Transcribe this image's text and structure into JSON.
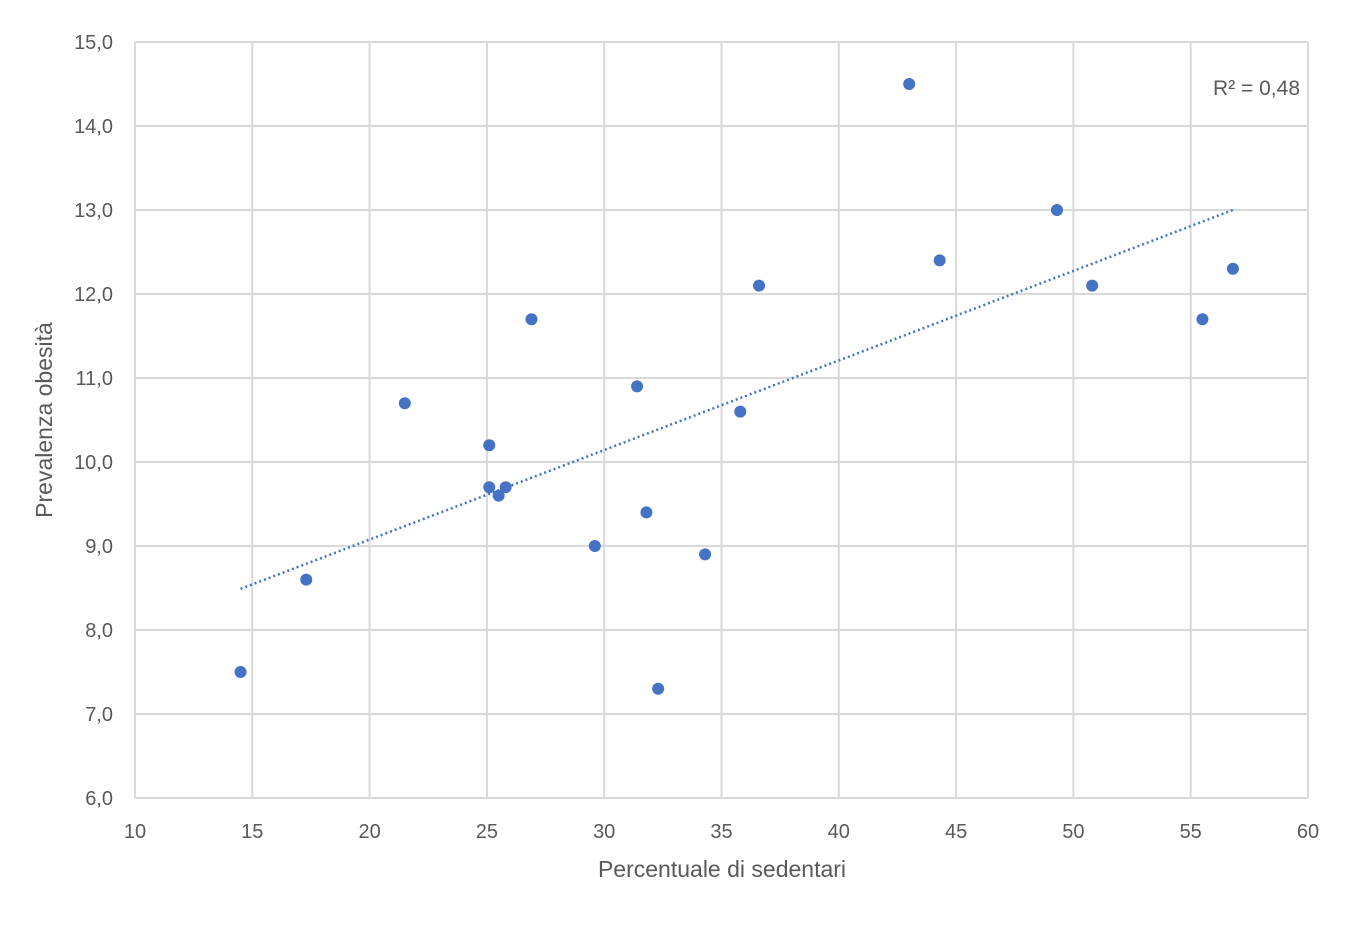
{
  "chart_data": {
    "type": "scatter",
    "xlabel": "Percentuale di sedentari",
    "ylabel": "Prevalenza obesità",
    "xlim": [
      10,
      60
    ],
    "ylim": [
      6,
      15
    ],
    "x_ticks": [
      10,
      15,
      20,
      25,
      30,
      35,
      40,
      45,
      50,
      55,
      60
    ],
    "y_ticks": [
      6,
      7,
      8,
      9,
      10,
      11,
      12,
      13,
      14,
      15
    ],
    "x_tick_labels": [
      "10",
      "15",
      "20",
      "25",
      "30",
      "35",
      "40",
      "45",
      "50",
      "55",
      "60"
    ],
    "y_tick_labels": [
      "6,0",
      "7,0",
      "8,0",
      "9,0",
      "10,0",
      "11,0",
      "12,0",
      "13,0",
      "14,0",
      "15,0"
    ],
    "grid": true,
    "series": [
      {
        "color": "#4472C4",
        "points": [
          {
            "x": 14.5,
            "y": 7.5
          },
          {
            "x": 17.3,
            "y": 8.6
          },
          {
            "x": 21.5,
            "y": 10.7
          },
          {
            "x": 25.1,
            "y": 10.2
          },
          {
            "x": 25.1,
            "y": 9.7
          },
          {
            "x": 25.5,
            "y": 9.6
          },
          {
            "x": 25.8,
            "y": 9.7
          },
          {
            "x": 26.9,
            "y": 11.7
          },
          {
            "x": 29.6,
            "y": 9.0
          },
          {
            "x": 31.4,
            "y": 10.9
          },
          {
            "x": 31.8,
            "y": 9.4
          },
          {
            "x": 32.3,
            "y": 7.3
          },
          {
            "x": 34.3,
            "y": 8.9
          },
          {
            "x": 35.8,
            "y": 10.6
          },
          {
            "x": 36.6,
            "y": 12.1
          },
          {
            "x": 43.0,
            "y": 14.5
          },
          {
            "x": 44.3,
            "y": 12.4
          },
          {
            "x": 49.3,
            "y": 13.0
          },
          {
            "x": 50.8,
            "y": 12.1
          },
          {
            "x": 55.5,
            "y": 11.7
          },
          {
            "x": 56.8,
            "y": 12.3
          }
        ]
      }
    ],
    "trendline": {
      "type": "linear",
      "x_start": 14.5,
      "y_start": 8.49,
      "x_end": 56.8,
      "y_end": 13.0,
      "color": "#4472C4",
      "dash": "dotted"
    },
    "annotation": "R² = 0,48"
  }
}
